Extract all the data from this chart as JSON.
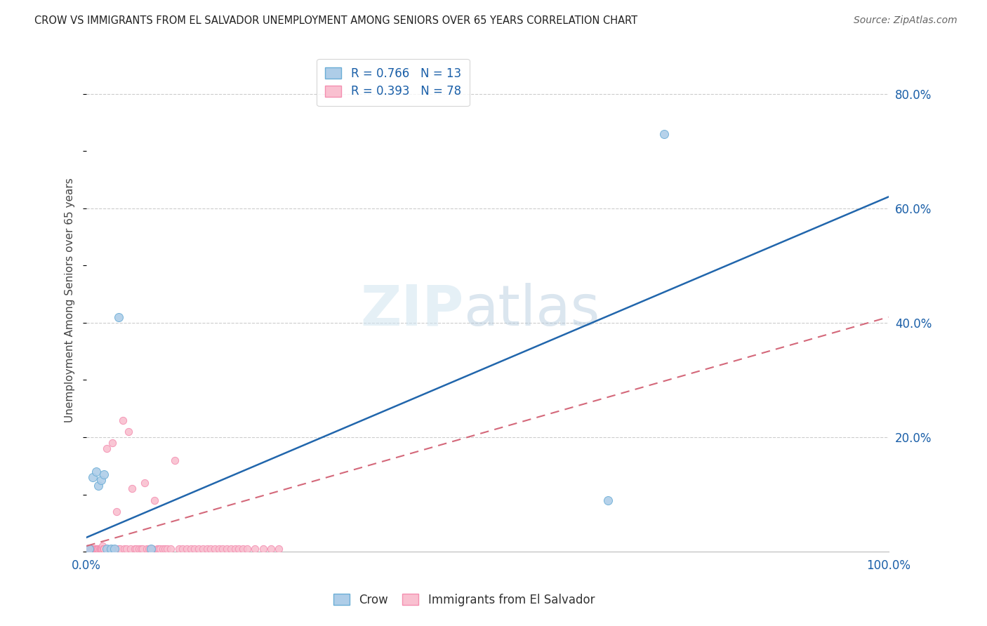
{
  "title": "CROW VS IMMIGRANTS FROM EL SALVADOR UNEMPLOYMENT AMONG SENIORS OVER 65 YEARS CORRELATION CHART",
  "source": "Source: ZipAtlas.com",
  "ylabel": "Unemployment Among Seniors over 65 years",
  "xlim": [
    0,
    1.0
  ],
  "ylim": [
    0,
    0.88
  ],
  "xticks": [
    0.0,
    0.25,
    0.5,
    0.75,
    1.0
  ],
  "xticklabels": [
    "0.0%",
    "",
    "",
    "",
    "100.0%"
  ],
  "ytick_labels_right": [
    "20.0%",
    "40.0%",
    "60.0%",
    "80.0%"
  ],
  "ytick_vals_right": [
    0.2,
    0.4,
    0.6,
    0.8
  ],
  "crow_R": 0.766,
  "crow_N": 13,
  "crow_color": "#6baed6",
  "crow_scatter_color": "#aecde8",
  "immigrants_R": 0.393,
  "immigrants_N": 78,
  "immigrants_color": "#f48fb1",
  "immigrants_scatter_color": "#f9c0d0",
  "blue_line_color": "#2166ac",
  "pink_line_color": "#d4687a",
  "crow_points_x": [
    0.003,
    0.008,
    0.012,
    0.015,
    0.018,
    0.022,
    0.025,
    0.03,
    0.035,
    0.04,
    0.08,
    0.65,
    0.72
  ],
  "crow_points_y": [
    0.005,
    0.13,
    0.14,
    0.115,
    0.125,
    0.135,
    0.005,
    0.005,
    0.005,
    0.41,
    0.005,
    0.09,
    0.73
  ],
  "immigrants_points_x": [
    0.0,
    0.001,
    0.002,
    0.003,
    0.004,
    0.005,
    0.006,
    0.007,
    0.008,
    0.009,
    0.01,
    0.011,
    0.012,
    0.013,
    0.014,
    0.015,
    0.016,
    0.017,
    0.018,
    0.019,
    0.02,
    0.021,
    0.022,
    0.025,
    0.027,
    0.03,
    0.032,
    0.035,
    0.037,
    0.04,
    0.042,
    0.045,
    0.047,
    0.05,
    0.052,
    0.055,
    0.057,
    0.06,
    0.062,
    0.065,
    0.068,
    0.07,
    0.072,
    0.075,
    0.078,
    0.08,
    0.082,
    0.085,
    0.088,
    0.09,
    0.092,
    0.095,
    0.098,
    0.1,
    0.105,
    0.11,
    0.115,
    0.12,
    0.125,
    0.13,
    0.135,
    0.14,
    0.145,
    0.15,
    0.155,
    0.16,
    0.165,
    0.17,
    0.175,
    0.18,
    0.185,
    0.19,
    0.195,
    0.2,
    0.21,
    0.22,
    0.23,
    0.24
  ],
  "immigrants_points_y": [
    0.005,
    0.005,
    0.005,
    0.005,
    0.005,
    0.005,
    0.005,
    0.005,
    0.005,
    0.005,
    0.005,
    0.005,
    0.005,
    0.005,
    0.005,
    0.005,
    0.005,
    0.005,
    0.005,
    0.005,
    0.01,
    0.005,
    0.005,
    0.18,
    0.005,
    0.005,
    0.19,
    0.005,
    0.07,
    0.005,
    0.005,
    0.23,
    0.005,
    0.005,
    0.21,
    0.005,
    0.11,
    0.005,
    0.005,
    0.005,
    0.005,
    0.005,
    0.12,
    0.005,
    0.005,
    0.005,
    0.005,
    0.09,
    0.005,
    0.005,
    0.005,
    0.005,
    0.005,
    0.005,
    0.005,
    0.16,
    0.005,
    0.005,
    0.005,
    0.005,
    0.005,
    0.005,
    0.005,
    0.005,
    0.005,
    0.005,
    0.005,
    0.005,
    0.005,
    0.005,
    0.005,
    0.005,
    0.005,
    0.005,
    0.005,
    0.005,
    0.005,
    0.005
  ],
  "blue_line_x": [
    0.0,
    1.0
  ],
  "blue_line_y": [
    0.025,
    0.62
  ],
  "pink_line_x": [
    0.0,
    1.0
  ],
  "pink_line_y": [
    0.01,
    0.41
  ],
  "background_color": "#ffffff",
  "grid_color": "#cccccc",
  "legend_label_color": "#1a5fa8"
}
